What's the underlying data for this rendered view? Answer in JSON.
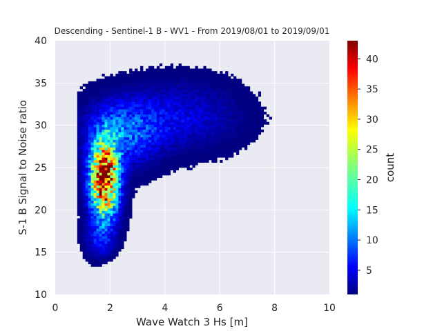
{
  "chart_data": {
    "type": "heatmap",
    "title": "Descending - Sentinel-1 B - WV1 - From 2019/08/01 to 2019/09/01",
    "xlabel": "Wave Watch 3 Hs [m]",
    "ylabel": "S-1 B Signal to Noise ratio",
    "xlim": [
      0,
      10
    ],
    "ylim": [
      10,
      40
    ],
    "xticks": [
      0,
      2,
      4,
      6,
      8,
      10
    ],
    "yticks": [
      10,
      15,
      20,
      25,
      30,
      35,
      40
    ],
    "grid": true,
    "bin_width_x": 0.1,
    "bin_height_y": 0.3,
    "colorbar": {
      "label": "count",
      "min": 1,
      "max": 43,
      "ticks": [
        5,
        10,
        15,
        20,
        25,
        30,
        35,
        40
      ],
      "colormap": "jet"
    },
    "density_model": {
      "description_hint": "2D histogram of count per bin",
      "components": [
        {
          "x": 1.75,
          "y": 23.5,
          "sx": 0.35,
          "sy": 3.0,
          "peak": 43
        },
        {
          "x": 2.4,
          "y": 29.0,
          "sx": 0.9,
          "sy": 2.5,
          "peak": 10
        },
        {
          "x": 4.5,
          "y": 31.0,
          "sx": 1.4,
          "sy": 2.6,
          "peak": 5
        },
        {
          "x": 1.6,
          "y": 16.5,
          "sx": 0.35,
          "sy": 1.5,
          "peak": 6
        }
      ]
    }
  },
  "colors": {
    "plot_background": "#eaeaf2",
    "grid": "#ffffff",
    "text": "#262626"
  }
}
